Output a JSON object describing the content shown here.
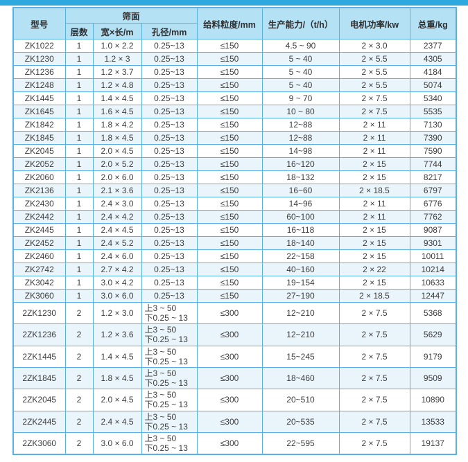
{
  "page": {
    "top_bar_color": "#2ea9e0",
    "background": "#ffffff"
  },
  "table": {
    "border_color": "#58b1e4",
    "header_bg": "#b5e1f5",
    "row_alt_bg": "#e9f4fb",
    "headers": {
      "model": "型号",
      "screen_surface": "筛面",
      "layers": "层数",
      "width_length": "宽×长/m",
      "aperture": "孔径/mm",
      "feed_size": "给料粒度/mm",
      "capacity": "生产能力/（t/h）",
      "motor_power": "电机功率/kw",
      "total_weight": "总重/kg"
    },
    "rows": [
      {
        "model": "ZK1022",
        "layers": "1",
        "size": "1.0 × 2.2",
        "aperture": "0.25~13",
        "feed": "≤150",
        "capacity": "4.5 ~ 90",
        "power": "2 × 3.0",
        "weight": "2377"
      },
      {
        "model": "ZK1230",
        "layers": "1",
        "size": "1.2 × 3",
        "aperture": "0.25~13",
        "feed": "≤150",
        "capacity": "5 ~ 40",
        "power": "2 × 5.5",
        "weight": "4305"
      },
      {
        "model": "ZK1236",
        "layers": "1",
        "size": "1.2 × 3.7",
        "aperture": "0.25~13",
        "feed": "≤150",
        "capacity": "5 ~ 40",
        "power": "2 × 5.5",
        "weight": "4184"
      },
      {
        "model": "ZK1248",
        "layers": "1",
        "size": "1.2 × 4.8",
        "aperture": "0.25~13",
        "feed": "≤150",
        "capacity": "5 ~ 40",
        "power": "2 × 5.5",
        "weight": "5074"
      },
      {
        "model": "ZK1445",
        "layers": "1",
        "size": "1.4 × 4.5",
        "aperture": "0.25~13",
        "feed": "≤150",
        "capacity": "9 ~ 70",
        "power": "2 × 7.5",
        "weight": "5340"
      },
      {
        "model": "ZK1645",
        "layers": "1",
        "size": "1.6 × 4.5",
        "aperture": "0.25~13",
        "feed": "≤150",
        "capacity": "10 ~ 80",
        "power": "2 × 7.5",
        "weight": "5535"
      },
      {
        "model": "ZK1842",
        "layers": "1",
        "size": "1.8 × 4.2",
        "aperture": "0.25~13",
        "feed": "≤150",
        "capacity": "12~88",
        "power": "2 × 11",
        "weight": "7130"
      },
      {
        "model": "ZK1845",
        "layers": "1",
        "size": "1.8 × 4.5",
        "aperture": "0.25~13",
        "feed": "≤150",
        "capacity": "12~88",
        "power": "2 × 11",
        "weight": "7390"
      },
      {
        "model": "ZK2045",
        "layers": "1",
        "size": "2.0 × 4.5",
        "aperture": "0.25~13",
        "feed": "≤150",
        "capacity": "14~98",
        "power": "2 × 11",
        "weight": "7590"
      },
      {
        "model": "ZK2052",
        "layers": "1",
        "size": "2.0 × 5.2",
        "aperture": "0.25~13",
        "feed": "≤150",
        "capacity": "16~120",
        "power": "2 × 15",
        "weight": "7744"
      },
      {
        "model": "ZK2060",
        "layers": "1",
        "size": "2.0 × 6.0",
        "aperture": "0.25~13",
        "feed": "≤150",
        "capacity": "18~132",
        "power": "2 × 15",
        "weight": "8217"
      },
      {
        "model": "ZK2136",
        "layers": "1",
        "size": "2.1 × 3.6",
        "aperture": "0.25~13",
        "feed": "≤150",
        "capacity": "16~60",
        "power": "2 × 18.5",
        "weight": "6797"
      },
      {
        "model": "ZK2430",
        "layers": "1",
        "size": "2.4 × 3.0",
        "aperture": "0.25~13",
        "feed": "≤150",
        "capacity": "14~96",
        "power": "2 × 11",
        "weight": "6776"
      },
      {
        "model": "ZK2442",
        "layers": "1",
        "size": "2.4 × 4.2",
        "aperture": "0.25~13",
        "feed": "≤150",
        "capacity": "60~100",
        "power": "2 × 11",
        "weight": "7762"
      },
      {
        "model": "ZK2445",
        "layers": "1",
        "size": "2.4 × 4.5",
        "aperture": "0.25~13",
        "feed": "≤150",
        "capacity": "16~118",
        "power": "2 × 15",
        "weight": "9087"
      },
      {
        "model": "ZK2452",
        "layers": "1",
        "size": "2.4 × 5.2",
        "aperture": "0.25~13",
        "feed": "≤150",
        "capacity": "18~140",
        "power": "2 × 15",
        "weight": "9301"
      },
      {
        "model": "ZK2460",
        "layers": "1",
        "size": "2.4 × 6.0",
        "aperture": "0.25~13",
        "feed": "≤150",
        "capacity": "22~158",
        "power": "2 × 15",
        "weight": "10011"
      },
      {
        "model": "ZK2742",
        "layers": "1",
        "size": "2.7 × 4.2",
        "aperture": "0.25~13",
        "feed": "≤150",
        "capacity": "40~160",
        "power": "2 × 22",
        "weight": "10214"
      },
      {
        "model": "ZK3042",
        "layers": "1",
        "size": "3.0 × 4.2",
        "aperture": "0.25~13",
        "feed": "≤150",
        "capacity": "19~154",
        "power": "2 × 15",
        "weight": "10633"
      },
      {
        "model": "ZK3060",
        "layers": "1",
        "size": "3.0 × 6.0",
        "aperture": "0.25~13",
        "feed": "≤150",
        "capacity": "27~190",
        "power": "2 × 18.5",
        "weight": "12447"
      },
      {
        "model": "2ZK1230",
        "layers": "2",
        "size": "1.2 × 3.0",
        "aperture": "上3 ~ 50\n下0.25 ~ 13",
        "feed": "≤300",
        "capacity": "12~210",
        "power": "2 × 7.5",
        "weight": "5368"
      },
      {
        "model": "2ZK1236",
        "layers": "2",
        "size": "1.2 × 3.6",
        "aperture": "上3 ~ 50\n下0.25 ~ 13",
        "feed": "≤300",
        "capacity": "12~210",
        "power": "2 × 7.5",
        "weight": "5629"
      },
      {
        "model": "2ZK1445",
        "layers": "2",
        "size": "1.4 × 4.5",
        "aperture": "上3 ~ 50\n下0.25 ~ 13",
        "feed": "≤300",
        "capacity": "15~245",
        "power": "2 × 7.5",
        "weight": "9179"
      },
      {
        "model": "2ZK1845",
        "layers": "2",
        "size": "1.8 × 4.5",
        "aperture": "上3 ~ 50\n下0.25 ~ 13",
        "feed": "≤300",
        "capacity": "18~460",
        "power": "2 × 7.5",
        "weight": "9509"
      },
      {
        "model": "2ZK2045",
        "layers": "2",
        "size": "2.0 × 4.5",
        "aperture": "上3 ~ 50\n下0.25 ~ 13",
        "feed": "≤300",
        "capacity": "20~510",
        "power": "2 × 7.5",
        "weight": "10890"
      },
      {
        "model": "2ZK2445",
        "layers": "2",
        "size": "2.4 × 4.5",
        "aperture": "上3 ~ 50\n下0.25 ~ 13",
        "feed": "≤300",
        "capacity": "20~535",
        "power": "2 × 7.5",
        "weight": "13533"
      },
      {
        "model": "2ZK3060",
        "layers": "2",
        "size": "3.0 × 6.0",
        "aperture": "上3 ~ 50\n下0.25 ~ 13",
        "feed": "≤300",
        "capacity": "22~595",
        "power": "2 × 7.5",
        "weight": "19137"
      }
    ]
  }
}
